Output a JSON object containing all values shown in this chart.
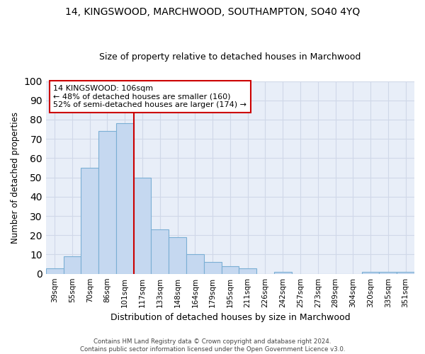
{
  "title": "14, KINGSWOOD, MARCHWOOD, SOUTHAMPTON, SO40 4YQ",
  "subtitle": "Size of property relative to detached houses in Marchwood",
  "xlabel": "Distribution of detached houses by size in Marchwood",
  "ylabel": "Number of detached properties",
  "categories": [
    "39sqm",
    "55sqm",
    "70sqm",
    "86sqm",
    "101sqm",
    "117sqm",
    "133sqm",
    "148sqm",
    "164sqm",
    "179sqm",
    "195sqm",
    "211sqm",
    "226sqm",
    "242sqm",
    "257sqm",
    "273sqm",
    "289sqm",
    "304sqm",
    "320sqm",
    "335sqm",
    "351sqm"
  ],
  "values": [
    3,
    9,
    55,
    74,
    78,
    50,
    23,
    19,
    10,
    6,
    4,
    3,
    0,
    1,
    0,
    0,
    0,
    0,
    1,
    1,
    1
  ],
  "bar_color": "#c5d8f0",
  "bar_edge_color": "#7bafd4",
  "vline_color": "#cc0000",
  "annotation_text": "14 KINGSWOOD: 106sqm\n← 48% of detached houses are smaller (160)\n52% of semi-detached houses are larger (174) →",
  "annotation_box_color": "#ffffff",
  "annotation_box_edge": "#cc0000",
  "grid_color": "#d0d8e8",
  "background_color": "#e8eef8",
  "ylim": [
    0,
    100
  ],
  "footer_line1": "Contains HM Land Registry data © Crown copyright and database right 2024.",
  "footer_line2": "Contains public sector information licensed under the Open Government Licence v3.0."
}
